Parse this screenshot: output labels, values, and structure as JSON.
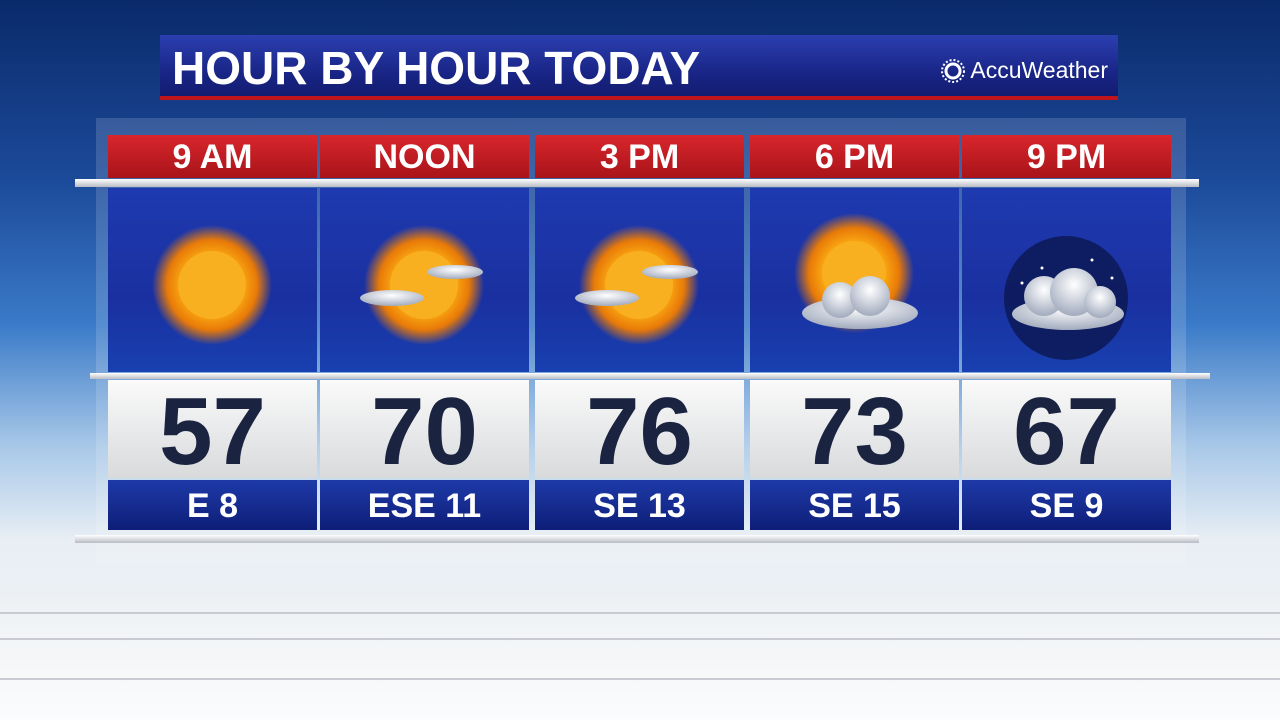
{
  "header": {
    "title": "HOUR BY HOUR TODAY",
    "brand": "AccuWeather"
  },
  "forecast": [
    {
      "time": "9 AM",
      "temp": "57",
      "wind": "E 8",
      "icon": "sunny-icon"
    },
    {
      "time": "NOON",
      "temp": "70",
      "wind": "ESE 11",
      "icon": "partly-sunny-icon"
    },
    {
      "time": "3 PM",
      "temp": "76",
      "wind": "SE 13",
      "icon": "partly-sunny-icon"
    },
    {
      "time": "6 PM",
      "temp": "73",
      "wind": "SE 15",
      "icon": "mostly-cloudy-icon"
    },
    {
      "time": "9 PM",
      "temp": "67",
      "wind": "SE 9",
      "icon": "cloudy-night-icon"
    }
  ],
  "colors": {
    "header_red": "#c0141c",
    "title_blue": "#1a2688",
    "temp_text": "#1a2440"
  }
}
